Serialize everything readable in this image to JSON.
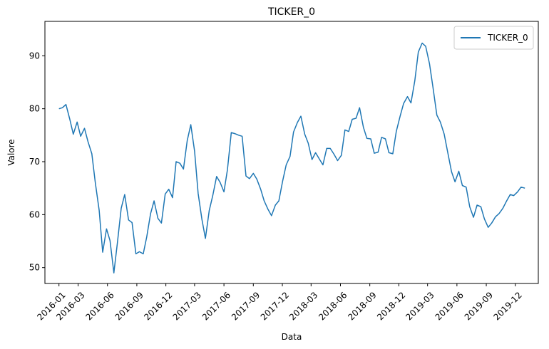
{
  "chart_data": {
    "type": "line",
    "title": "TICKER_0",
    "xlabel": "Data",
    "ylabel": "Valore",
    "xlim": [
      "2015-11-18",
      "2020-02-11"
    ],
    "ylim": [
      47,
      96.5
    ],
    "x_ticks": [
      "2016-01",
      "2016-03",
      "2016-06",
      "2016-09",
      "2016-12",
      "2017-03",
      "2017-06",
      "2017-09",
      "2017-12",
      "2018-03",
      "2018-06",
      "2018-09",
      "2018-12",
      "2019-03",
      "2019-06",
      "2019-09",
      "2019-12"
    ],
    "y_ticks": [
      50,
      60,
      70,
      80,
      90
    ],
    "grid": false,
    "legend": "top-right",
    "line_color": "#1f77b4",
    "series": [
      {
        "name": "TICKER_0",
        "x": [
          "2016-01-01",
          "2016-01-12",
          "2016-01-23",
          "2016-02-04",
          "2016-02-15",
          "2016-02-27",
          "2016-03-09",
          "2016-03-21",
          "2016-04-01",
          "2016-04-13",
          "2016-04-24",
          "2016-05-06",
          "2016-05-17",
          "2016-05-29",
          "2016-06-09",
          "2016-06-21",
          "2016-07-02",
          "2016-07-14",
          "2016-07-25",
          "2016-08-06",
          "2016-08-17",
          "2016-08-29",
          "2016-09-09",
          "2016-09-21",
          "2016-10-02",
          "2016-10-14",
          "2016-10-25",
          "2016-11-06",
          "2016-11-17",
          "2016-11-29",
          "2016-12-10",
          "2016-12-22",
          "2017-01-02",
          "2017-01-14",
          "2017-01-25",
          "2017-02-06",
          "2017-02-17",
          "2017-03-01",
          "2017-03-12",
          "2017-03-24",
          "2017-04-04",
          "2017-04-16",
          "2017-04-27",
          "2017-05-09",
          "2017-05-20",
          "2017-06-01",
          "2017-06-12",
          "2017-06-24",
          "2017-07-05",
          "2017-07-17",
          "2017-07-28",
          "2017-08-09",
          "2017-08-20",
          "2017-09-01",
          "2017-09-12",
          "2017-09-24",
          "2017-10-05",
          "2017-10-17",
          "2017-10-28",
          "2017-11-09",
          "2017-11-20",
          "2017-12-02",
          "2017-12-13",
          "2017-12-25",
          "2018-01-05",
          "2018-01-17",
          "2018-01-28",
          "2018-02-09",
          "2018-02-20",
          "2018-03-04",
          "2018-03-15",
          "2018-03-27",
          "2018-04-07",
          "2018-04-19",
          "2018-04-30",
          "2018-05-12",
          "2018-05-23",
          "2018-06-04",
          "2018-06-15",
          "2018-06-27",
          "2018-07-08",
          "2018-07-20",
          "2018-07-31",
          "2018-08-12",
          "2018-08-23",
          "2018-09-04",
          "2018-09-15",
          "2018-09-27",
          "2018-10-08",
          "2018-10-20",
          "2018-10-31",
          "2018-11-12",
          "2018-11-23",
          "2018-12-05",
          "2018-12-16",
          "2018-12-28",
          "2019-01-08",
          "2019-01-20",
          "2019-01-31",
          "2019-02-12",
          "2019-02-23",
          "2019-03-07",
          "2019-03-18",
          "2019-03-30",
          "2019-04-10",
          "2019-04-22",
          "2019-05-03",
          "2019-05-15",
          "2019-05-26",
          "2019-06-07",
          "2019-06-18",
          "2019-06-30",
          "2019-07-11",
          "2019-07-23",
          "2019-08-03",
          "2019-08-15",
          "2019-08-26",
          "2019-09-07",
          "2019-09-18",
          "2019-09-30",
          "2019-10-11",
          "2019-10-23",
          "2019-11-03",
          "2019-11-15",
          "2019-11-26",
          "2019-12-08",
          "2019-12-19",
          "2019-12-31"
        ],
        "values": [
          80.0,
          80.2,
          80.8,
          78.0,
          75.2,
          77.5,
          74.8,
          76.3,
          73.8,
          71.5,
          66.0,
          60.8,
          52.9,
          57.3,
          55.1,
          49.0,
          54.6,
          61.2,
          63.8,
          59.0,
          58.5,
          52.6,
          53.0,
          52.6,
          55.8,
          60.2,
          62.6,
          59.3,
          58.4,
          63.9,
          64.8,
          63.2,
          70.0,
          69.7,
          68.6,
          74.0,
          77.0,
          72.0,
          64.0,
          59.1,
          55.5,
          60.8,
          63.6,
          67.2,
          66.1,
          64.3,
          68.5,
          75.5,
          75.3,
          75.0,
          74.8,
          67.3,
          66.8,
          67.8,
          66.7,
          64.8,
          62.6,
          61.0,
          59.8,
          61.8,
          62.6,
          66.4,
          69.4,
          71.0,
          75.6,
          77.4,
          78.6,
          75.2,
          73.5,
          70.4,
          71.7,
          70.5,
          69.4,
          72.5,
          72.5,
          71.4,
          70.2,
          71.2,
          76.0,
          75.7,
          78.0,
          78.2,
          80.2,
          76.5,
          74.4,
          74.3,
          71.6,
          71.8,
          74.6,
          74.3,
          71.7,
          71.5,
          75.7,
          78.6,
          81.0,
          82.3,
          81.1,
          85.3,
          90.7,
          92.4,
          91.8,
          88.5,
          84.0,
          78.8,
          77.5,
          75.2,
          71.8,
          68.1,
          66.2,
          68.2,
          65.5,
          65.2,
          61.5,
          59.5,
          61.8,
          61.5,
          59.2,
          57.6,
          58.4,
          59.6,
          60.2,
          61.2,
          62.5,
          63.8,
          63.6,
          64.3,
          65.2,
          65.0
        ]
      }
    ]
  }
}
